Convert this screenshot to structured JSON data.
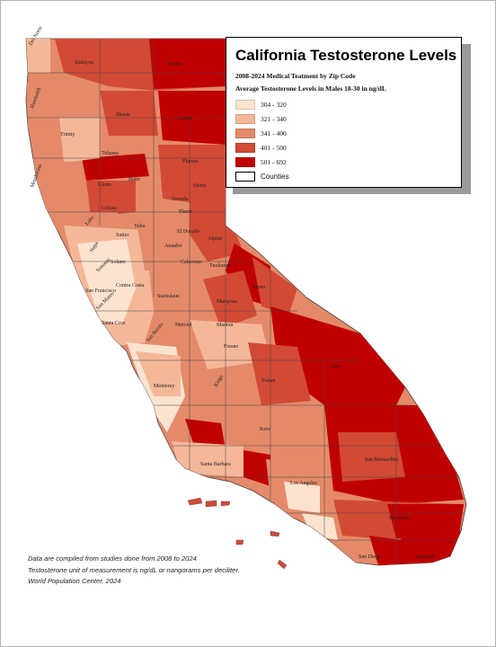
{
  "legend": {
    "title": "California Testosterone Levels",
    "subtitle_1": "2008-2024 Medical Teatment by Zip Code",
    "subtitle_2": "Average Testosterone Levels in Males 18-30 in ng/dL",
    "classes": [
      {
        "label": "304 - 320",
        "color": "#fbe3cf"
      },
      {
        "label": "321 - 340",
        "color": "#f4b899"
      },
      {
        "label": "341 - 400",
        "color": "#e48a6a"
      },
      {
        "label": "401 - 500",
        "color": "#d24a35"
      },
      {
        "label": "501 - 692",
        "color": "#c00000"
      }
    ],
    "counties_label": "Counties"
  },
  "notes": [
    "Data are compiled from studies done from 2008 to 2024",
    "Testosterone unit of measurement is ng/dL or nangorams per deciliter.",
    "World Population Center, 2024"
  ],
  "county_labels": [
    {
      "name": "Del Norte"
    },
    {
      "name": "Siskiyou"
    },
    {
      "name": "Modoc"
    },
    {
      "name": "Humboldt"
    },
    {
      "name": "Trinity"
    },
    {
      "name": "Shasta"
    },
    {
      "name": "Lassen"
    },
    {
      "name": "Tehama"
    },
    {
      "name": "Plumas"
    },
    {
      "name": "Mendocino"
    },
    {
      "name": "Glenn"
    },
    {
      "name": "Butte"
    },
    {
      "name": "Sierra"
    },
    {
      "name": "Nevada"
    },
    {
      "name": "Colusa"
    },
    {
      "name": "Placer"
    },
    {
      "name": "Lake"
    },
    {
      "name": "Yuba"
    },
    {
      "name": "Sutter"
    },
    {
      "name": "El Dorado"
    },
    {
      "name": "Alpine"
    },
    {
      "name": "Amador"
    },
    {
      "name": "Napa"
    },
    {
      "name": "Sonoma"
    },
    {
      "name": "Solano"
    },
    {
      "name": "Calaveras"
    },
    {
      "name": "Tuolumne"
    },
    {
      "name": "Mono"
    },
    {
      "name": "San Francisco"
    },
    {
      "name": "Contra Costa"
    },
    {
      "name": "San Mateo"
    },
    {
      "name": "Stanislaus"
    },
    {
      "name": "Mariposa"
    },
    {
      "name": "Madera"
    },
    {
      "name": "Santa Cruz"
    },
    {
      "name": "Merced"
    },
    {
      "name": "Fresno"
    },
    {
      "name": "San Benito"
    },
    {
      "name": "Inyo"
    },
    {
      "name": "Monterey"
    },
    {
      "name": "Kings"
    },
    {
      "name": "Tulare"
    },
    {
      "name": "Kern"
    },
    {
      "name": "San Bernardino"
    },
    {
      "name": "Santa Barbara"
    },
    {
      "name": "Los Angeles"
    },
    {
      "name": "Riverside"
    },
    {
      "name": "San Diego"
    },
    {
      "name": "Imperial"
    }
  ]
}
